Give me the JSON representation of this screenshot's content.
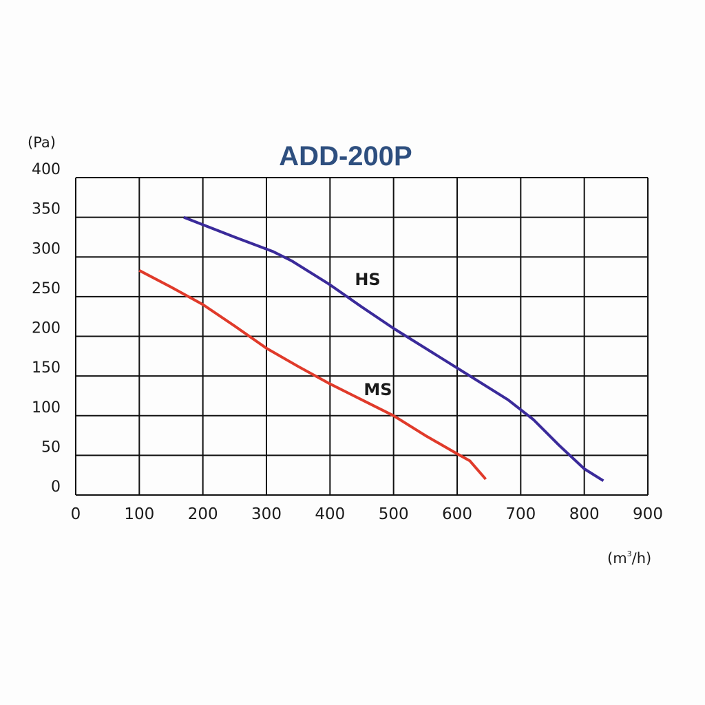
{
  "chart_data": {
    "type": "line",
    "title": "ADD-200P",
    "title_color": "#2e4f7f",
    "ylabel": "(Pa)",
    "xlabel_parts": {
      "prefix": "(m",
      "sup": "3",
      "suffix": "/h)"
    },
    "xlim": [
      0,
      900
    ],
    "ylim": [
      0,
      400
    ],
    "x_ticks": [
      "0",
      "100",
      "200",
      "300",
      "400",
      "500",
      "600",
      "700",
      "800",
      "900"
    ],
    "y_ticks": [
      "0",
      "50",
      "100",
      "150",
      "200",
      "250",
      "300",
      "350",
      "400"
    ],
    "grid": true,
    "series": [
      {
        "name": "HS",
        "color": "#3a2a9a",
        "x": [
          170,
          250,
          310,
          340,
          400,
          450,
          500,
          560,
          620,
          680,
          720,
          760,
          800,
          830
        ],
        "y": [
          350,
          325,
          307,
          295,
          265,
          237,
          210,
          180,
          150,
          120,
          95,
          63,
          33,
          18
        ]
      },
      {
        "name": "MS",
        "color": "#e03a2a",
        "x": [
          100,
          150,
          200,
          250,
          300,
          350,
          400,
          450,
          500,
          550,
          600,
          620,
          645
        ],
        "y": [
          283,
          262,
          240,
          213,
          185,
          162,
          140,
          120,
          100,
          75,
          52,
          43,
          20
        ]
      }
    ]
  }
}
